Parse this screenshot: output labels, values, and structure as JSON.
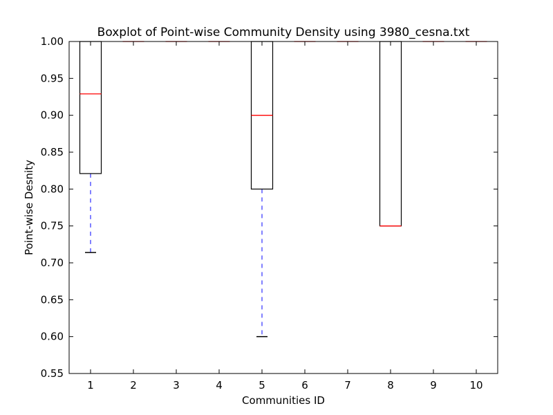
{
  "chart_data": {
    "type": "boxplot",
    "title": "Boxplot of Point-wise Community Density using 3980_cesna.txt",
    "xlabel": "Communities ID",
    "ylabel": "Point-wise Desnity",
    "categories": [
      "1",
      "2",
      "3",
      "4",
      "5",
      "6",
      "7",
      "8",
      "9",
      "10"
    ],
    "ylim": [
      0.55,
      1.0
    ],
    "yticks": [
      "0.55",
      "0.60",
      "0.65",
      "0.70",
      "0.75",
      "0.80",
      "0.85",
      "0.90",
      "0.95",
      "1.00"
    ],
    "grid": false,
    "boxes": [
      {
        "id": "1",
        "whisker_low": 0.714,
        "q1": 0.821,
        "median": 0.929,
        "q3": 1.0,
        "whisker_high": 1.0
      },
      {
        "id": "2",
        "whisker_low": 1.0,
        "q1": 1.0,
        "median": 1.0,
        "q3": 1.0,
        "whisker_high": 1.0
      },
      {
        "id": "3",
        "whisker_low": 1.0,
        "q1": 1.0,
        "median": 1.0,
        "q3": 1.0,
        "whisker_high": 1.0
      },
      {
        "id": "4",
        "whisker_low": 1.0,
        "q1": 1.0,
        "median": 1.0,
        "q3": 1.0,
        "whisker_high": 1.0
      },
      {
        "id": "5",
        "whisker_low": 0.6,
        "q1": 0.8,
        "median": 0.9,
        "q3": 1.0,
        "whisker_high": 1.0
      },
      {
        "id": "6",
        "whisker_low": 1.0,
        "q1": 1.0,
        "median": 1.0,
        "q3": 1.0,
        "whisker_high": 1.0
      },
      {
        "id": "7",
        "whisker_low": 1.0,
        "q1": 1.0,
        "median": 1.0,
        "q3": 1.0,
        "whisker_high": 1.0
      },
      {
        "id": "8",
        "whisker_low": 0.75,
        "q1": 0.75,
        "median": 0.75,
        "q3": 1.0,
        "whisker_high": 1.0
      },
      {
        "id": "9",
        "whisker_low": 1.0,
        "q1": 1.0,
        "median": 1.0,
        "q3": 1.0,
        "whisker_high": 1.0
      },
      {
        "id": "10",
        "whisker_low": 1.0,
        "q1": 1.0,
        "median": 1.0,
        "q3": 1.0,
        "whisker_high": 1.0
      }
    ],
    "colors": {
      "box": "#000000",
      "median": "#ff0000",
      "whisker": "#0000ff",
      "cap": "#000000"
    }
  }
}
